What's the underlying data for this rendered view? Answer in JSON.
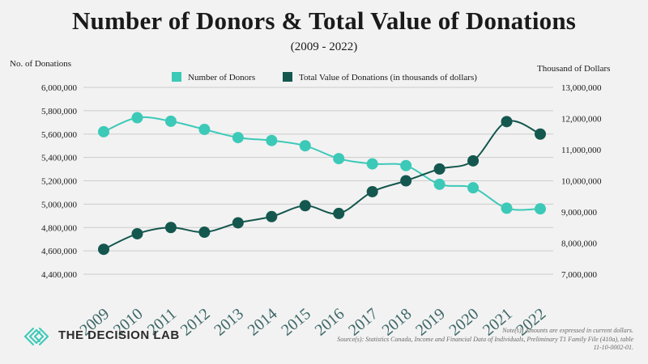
{
  "title": "Number of Donors & Total Value of Donations",
  "subtitle": "(2009 - 2022)",
  "brand": {
    "name": "THE DECISION LAB"
  },
  "notes": {
    "line1": "Note(s): Amounts are expressed in current dollars.",
    "line2": "Source(s): Statistics Canada, Income and Financial Data of Individuals, Preliminary T1 Family File (410a), table",
    "line3": "11-10-0002-01."
  },
  "colors": {
    "donors": "#3cc9b8",
    "value": "#14574e",
    "grid": "#cccccc",
    "background": "#f2f2f2"
  },
  "chart_data": {
    "type": "line",
    "x": [
      "2009",
      "2010",
      "2011",
      "2012",
      "2013",
      "2014",
      "2015",
      "2016",
      "2017",
      "2018",
      "2019",
      "2020",
      "2021",
      "2022"
    ],
    "ylabel_left": "No. of Donations",
    "ylabel_right": "Thousand of Dollars",
    "ylim_left": [
      4400000,
      6000000
    ],
    "ylim_right": [
      7000000,
      13000000
    ],
    "yticks_left": [
      4400000,
      4600000,
      4800000,
      5000000,
      5200000,
      5400000,
      5600000,
      5800000,
      6000000
    ],
    "yticks_right": [
      7000000,
      8000000,
      9000000,
      10000000,
      11000000,
      12000000,
      13000000
    ],
    "grid": true,
    "legend_position": "top",
    "series": [
      {
        "name": "Number of Donors",
        "axis": "left",
        "values": [
          5620000,
          5740000,
          5710000,
          5640000,
          5570000,
          5545000,
          5500000,
          5390000,
          5345000,
          5330000,
          5170000,
          5140000,
          4965000,
          4960000
        ]
      },
      {
        "name": "Total Value of Donations (in thousands of dollars)",
        "axis": "right",
        "values": [
          7800000,
          8300000,
          8500000,
          8350000,
          8650000,
          8850000,
          9200000,
          8950000,
          9650000,
          10000000,
          10380000,
          10640000,
          11900000,
          11500000
        ]
      }
    ]
  }
}
